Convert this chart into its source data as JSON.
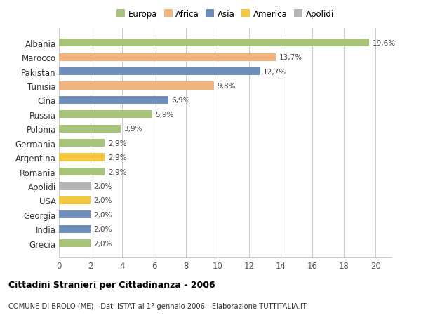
{
  "categories": [
    "Albania",
    "Marocco",
    "Pakistan",
    "Tunisia",
    "Cina",
    "Russia",
    "Polonia",
    "Germania",
    "Argentina",
    "Romania",
    "Apolidi",
    "USA",
    "Georgia",
    "India",
    "Grecia"
  ],
  "values": [
    19.6,
    13.7,
    12.7,
    9.8,
    6.9,
    5.9,
    3.9,
    2.9,
    2.9,
    2.9,
    2.0,
    2.0,
    2.0,
    2.0,
    2.0
  ],
  "labels": [
    "19,6%",
    "13,7%",
    "12,7%",
    "9,8%",
    "6,9%",
    "5,9%",
    "3,9%",
    "2,9%",
    "2,9%",
    "2,9%",
    "2,0%",
    "2,0%",
    "2,0%",
    "2,0%",
    "2,0%"
  ],
  "continent_colors": {
    "Albania": "#a8c47a",
    "Marocco": "#f2b47e",
    "Pakistan": "#6f8fba",
    "Tunisia": "#f2b47e",
    "Cina": "#6f8fba",
    "Russia": "#a8c47a",
    "Polonia": "#a8c47a",
    "Germania": "#a8c47a",
    "Argentina": "#f5c842",
    "Romania": "#a8c47a",
    "Apolidi": "#b5b5b5",
    "USA": "#f5c842",
    "Georgia": "#6f8fba",
    "India": "#6f8fba",
    "Grecia": "#a8c47a"
  },
  "legend_items": [
    {
      "label": "Europa",
      "color": "#a8c47a"
    },
    {
      "label": "Africa",
      "color": "#f2b47e"
    },
    {
      "label": "Asia",
      "color": "#6f8fba"
    },
    {
      "label": "America",
      "color": "#f5c842"
    },
    {
      "label": "Apolidi",
      "color": "#b5b5b5"
    }
  ],
  "xlim": [
    0,
    21
  ],
  "xticks": [
    0,
    2,
    4,
    6,
    8,
    10,
    12,
    14,
    16,
    18,
    20
  ],
  "title": "Cittadini Stranieri per Cittadinanza - 2006",
  "subtitle": "COMUNE DI BROLO (ME) - Dati ISTAT al 1° gennaio 2006 - Elaborazione TUTTITALIA.IT",
  "background_color": "#ffffff",
  "grid_color": "#cccccc",
  "bar_height": 0.55,
  "figsize": [
    6.0,
    4.6
  ],
  "dpi": 100
}
